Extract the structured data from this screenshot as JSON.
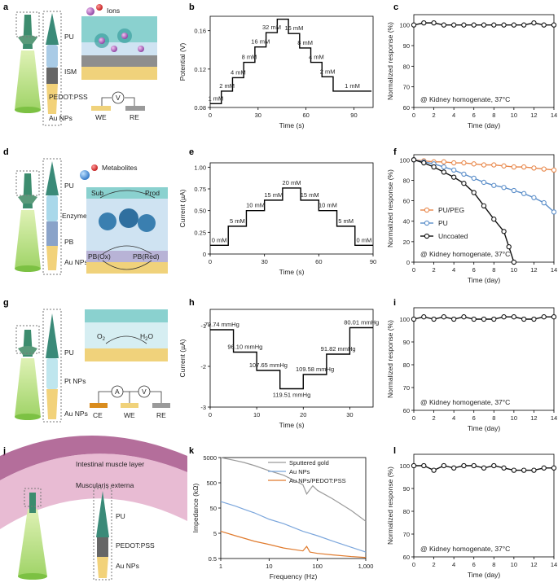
{
  "panels": {
    "a": {
      "letter": "a",
      "legend": "Ions",
      "layers": [
        "PU",
        "ISM",
        "PEDOT:PSS",
        "Au NPs"
      ],
      "electrodes": [
        "WE",
        "RE"
      ],
      "meter": "V"
    },
    "d": {
      "letter": "d",
      "legend": "Metabolites",
      "layers": [
        "PU",
        "Enzyme",
        "PB",
        "Au NPs"
      ],
      "reaction": [
        "Sub",
        "Prod",
        "PB(Ox)",
        "PB(Red)"
      ]
    },
    "g": {
      "letter": "g",
      "layers": [
        "PU",
        "Pt NPs",
        "Au NPs"
      ],
      "electrodes": [
        "CE",
        "WE",
        "RE"
      ],
      "meters": [
        "A",
        "V"
      ],
      "o2": "O",
      "h2o": "H",
      "o2_sub": "2",
      "h2o_sub": "2",
      "h2o_tail": "O"
    },
    "j": {
      "letter": "j",
      "tissue": [
        "Intestinal muscle layer",
        "Muscularis externa"
      ],
      "layers": [
        "PU",
        "PEDOT:PSS",
        "Au NPs"
      ]
    }
  },
  "chart_data": [
    {
      "id": "b",
      "letter": "b",
      "type": "line",
      "xlabel": "Time (s)",
      "ylabel": "Potential (V)",
      "xticks": [
        0,
        30,
        60,
        90
      ],
      "yticks": [
        0.08,
        0.12,
        0.16
      ],
      "ytick_labels": [
        "0.08",
        "0.12",
        "0.16"
      ],
      "xlim": [
        0,
        102
      ],
      "ylim": [
        0.08,
        0.175
      ],
      "steps": [
        {
          "t0": 0,
          "t1": 7,
          "v": 0.084,
          "label": "1 mM"
        },
        {
          "t0": 7,
          "t1": 14,
          "v": 0.097,
          "label": "2 mM"
        },
        {
          "t0": 14,
          "t1": 21,
          "v": 0.111,
          "label": "4 mM"
        },
        {
          "t0": 21,
          "t1": 28,
          "v": 0.127,
          "label": "8 mM"
        },
        {
          "t0": 28,
          "t1": 35,
          "v": 0.143,
          "label": "16 mM"
        },
        {
          "t0": 35,
          "t1": 42,
          "v": 0.158,
          "label": "32 mM"
        },
        {
          "t0": 42,
          "t1": 49,
          "v": 0.172,
          "label": ""
        },
        {
          "t0": 49,
          "t1": 56,
          "v": 0.157,
          "label": "16 mM"
        },
        {
          "t0": 56,
          "t1": 63,
          "v": 0.142,
          "label": "8 mM"
        },
        {
          "t0": 63,
          "t1": 70,
          "v": 0.127,
          "label": "4 mM"
        },
        {
          "t0": 70,
          "t1": 77,
          "v": 0.112,
          "label": "2 mM"
        },
        {
          "t0": 77,
          "t1": 101,
          "v": 0.097,
          "label": "1 mM"
        }
      ]
    },
    {
      "id": "c",
      "letter": "c",
      "type": "line",
      "xlabel": "Time (day)",
      "ylabel": "Normalized response (%)",
      "annotation": "@ Kidney homogenate, 37°C",
      "xticks": [
        0,
        2,
        4,
        6,
        8,
        10,
        12,
        14
      ],
      "yticks": [
        60,
        70,
        80,
        90,
        100
      ],
      "xlim": [
        0,
        14
      ],
      "ylim": [
        60,
        105
      ],
      "series": [
        {
          "name": "",
          "x": [
            0,
            1,
            2,
            3,
            4,
            5,
            6,
            7,
            8,
            9,
            10,
            11,
            12,
            13,
            14
          ],
          "y": [
            100,
            101,
            101,
            100,
            100,
            100,
            100,
            100,
            100,
            100,
            100,
            100,
            101,
            100,
            100
          ]
        }
      ]
    },
    {
      "id": "e",
      "letter": "e",
      "type": "line",
      "xlabel": "Time (s)",
      "ylabel": "Current (µA)",
      "xticks": [
        0,
        30,
        60,
        90
      ],
      "yticks": [
        0,
        0.25,
        0.5,
        0.75,
        1.0
      ],
      "ytick_labels": [
        "0",
        "0.25",
        "0.50",
        "0.75",
        "1.00"
      ],
      "xlim": [
        0,
        90
      ],
      "ylim": [
        0,
        1.05
      ],
      "steps": [
        {
          "t0": 0,
          "t1": 10,
          "v": 0.1,
          "label": "0 mM"
        },
        {
          "t0": 10,
          "t1": 20,
          "v": 0.32,
          "label": "5 mM"
        },
        {
          "t0": 20,
          "t1": 30,
          "v": 0.5,
          "label": "10 mM"
        },
        {
          "t0": 30,
          "t1": 40,
          "v": 0.62,
          "label": "15 mM"
        },
        {
          "t0": 40,
          "t1": 50,
          "v": 0.76,
          "label": "20 mM"
        },
        {
          "t0": 50,
          "t1": 60,
          "v": 0.62,
          "label": "15 mM"
        },
        {
          "t0": 60,
          "t1": 70,
          "v": 0.5,
          "label": "10 mM"
        },
        {
          "t0": 70,
          "t1": 80,
          "v": 0.32,
          "label": "5 mM"
        },
        {
          "t0": 80,
          "t1": 90,
          "v": 0.1,
          "label": "0 mM"
        }
      ]
    },
    {
      "id": "f",
      "letter": "f",
      "type": "line",
      "xlabel": "Time (day)",
      "ylabel": "Normalized response (%)",
      "annotation": "@ Kidney homogenate, 37°C",
      "xticks": [
        0,
        2,
        4,
        6,
        8,
        10,
        12,
        14
      ],
      "yticks": [
        0,
        20,
        40,
        60,
        80,
        100
      ],
      "xlim": [
        0,
        14
      ],
      "ylim": [
        0,
        105
      ],
      "series": [
        {
          "name": "PU/PEG",
          "color": "#e8874a",
          "x": [
            0,
            1,
            2,
            3,
            4,
            5,
            6,
            7,
            8,
            9,
            10,
            11,
            12,
            13,
            14
          ],
          "y": [
            100,
            99,
            98,
            98,
            97,
            97,
            96,
            95,
            95,
            94,
            93,
            93,
            92,
            91,
            90
          ]
        },
        {
          "name": "PU",
          "color": "#5b8ec9",
          "x": [
            0,
            1,
            2,
            3,
            4,
            5,
            6,
            7,
            8,
            9,
            10,
            11,
            12,
            13,
            14
          ],
          "y": [
            100,
            98,
            96,
            93,
            90,
            86,
            82,
            78,
            75,
            73,
            70,
            67,
            63,
            58,
            49
          ]
        },
        {
          "name": "Uncoated",
          "color": "#111111",
          "x": [
            0,
            1,
            2,
            3,
            4,
            5,
            6,
            7,
            8,
            9,
            9.5,
            10
          ],
          "y": [
            100,
            97,
            93,
            88,
            83,
            77,
            68,
            55,
            42,
            30,
            15,
            0
          ]
        }
      ]
    },
    {
      "id": "h",
      "letter": "h",
      "type": "line",
      "xlabel": "Time (s)",
      "ylabel": "Current (µA)",
      "xticks": [
        0,
        10,
        20,
        30
      ],
      "yticks": [
        -3,
        -2,
        -1
      ],
      "xlim": [
        0,
        35
      ],
      "ylim": [
        -3,
        -0.6
      ],
      "steps": [
        {
          "t0": 0,
          "t1": 5,
          "v": -1.1,
          "label": "79.74 mmHg"
        },
        {
          "t0": 5,
          "t1": 10,
          "v": -1.65,
          "label": "96.10 mmHg"
        },
        {
          "t0": 10,
          "t1": 15,
          "v": -2.1,
          "label": "107.65 mmHg"
        },
        {
          "t0": 15,
          "t1": 20,
          "v": -2.55,
          "label": "119.51 mmHg"
        },
        {
          "t0": 20,
          "t1": 25,
          "v": -2.2,
          "label": "109.58 mmHg"
        },
        {
          "t0": 25,
          "t1": 30,
          "v": -1.7,
          "label": "91.82 mmHg"
        },
        {
          "t0": 30,
          "t1": 35,
          "v": -1.05,
          "label": "80.01 mmHg"
        }
      ]
    },
    {
      "id": "i",
      "letter": "i",
      "type": "line",
      "xlabel": "Time (day)",
      "ylabel": "Normalized response (%)",
      "annotation": "@ Kidney homogenate, 37°C",
      "xticks": [
        0,
        2,
        4,
        6,
        8,
        10,
        12,
        14
      ],
      "yticks": [
        60,
        70,
        80,
        90,
        100
      ],
      "xlim": [
        0,
        14
      ],
      "ylim": [
        60,
        105
      ],
      "series": [
        {
          "name": "",
          "x": [
            0,
            1,
            2,
            3,
            4,
            5,
            6,
            7,
            8,
            9,
            10,
            11,
            12,
            13,
            14
          ],
          "y": [
            100,
            101,
            100,
            101,
            100,
            101,
            100,
            100,
            100,
            101,
            101,
            100,
            100,
            101,
            101
          ]
        }
      ]
    },
    {
      "id": "k",
      "letter": "k",
      "type": "line",
      "xlabel": "Frequency (Hz)",
      "ylabel": "Impedance (kΩ)",
      "scale": "log-log",
      "xticks": [
        1,
        10,
        100,
        1000
      ],
      "xtick_labels": [
        "1",
        "10",
        "100",
        "1,000"
      ],
      "yticks": [
        0.5,
        5,
        50,
        500,
        5000
      ],
      "ytick_labels": [
        "0.5",
        "5",
        "50",
        "500",
        "5000"
      ],
      "xlim": [
        1,
        1000
      ],
      "ylim": [
        0.5,
        5000
      ],
      "series": [
        {
          "name": "Sputtered gold",
          "color": "#9a9a9a",
          "x": [
            1,
            2,
            3,
            5,
            10,
            20,
            50,
            60,
            80,
            100,
            200,
            500,
            1000
          ],
          "y": [
            5000,
            3800,
            3200,
            2400,
            1500,
            1000,
            420,
            180,
            380,
            250,
            120,
            40,
            15
          ]
        },
        {
          "name": "Au NPs",
          "color": "#7ba6dc",
          "x": [
            1,
            2,
            3,
            5,
            10,
            20,
            50,
            100,
            200,
            500,
            1000
          ],
          "y": [
            90,
            60,
            45,
            32,
            18,
            12,
            6,
            4,
            2.5,
            1.4,
            0.9
          ]
        },
        {
          "name": "Au NPs/PEDOT:PSS",
          "color": "#e07b2e",
          "x": [
            1,
            2,
            3,
            5,
            10,
            20,
            50,
            60,
            70,
            100,
            200,
            500,
            1000
          ],
          "y": [
            6,
            4,
            3.2,
            2.4,
            1.8,
            1.3,
            1.0,
            1.5,
            0.9,
            0.8,
            0.7,
            0.6,
            0.55
          ]
        }
      ]
    },
    {
      "id": "l",
      "letter": "l",
      "type": "line",
      "xlabel": "Time (day)",
      "ylabel": "Normalized response (%)",
      "annotation": "@ Kidney homogenate, 37°C",
      "xticks": [
        0,
        2,
        4,
        6,
        8,
        10,
        12,
        14
      ],
      "yticks": [
        60,
        70,
        80,
        90,
        100
      ],
      "xlim": [
        0,
        14
      ],
      "ylim": [
        60,
        105
      ],
      "series": [
        {
          "name": "",
          "x": [
            0,
            1,
            2,
            3,
            4,
            5,
            6,
            7,
            8,
            9,
            10,
            11,
            12,
            13,
            14
          ],
          "y": [
            100,
            100,
            98,
            100,
            99,
            100,
            100,
            99,
            100,
            99,
            98,
            98,
            98,
            99,
            99
          ]
        }
      ]
    }
  ]
}
